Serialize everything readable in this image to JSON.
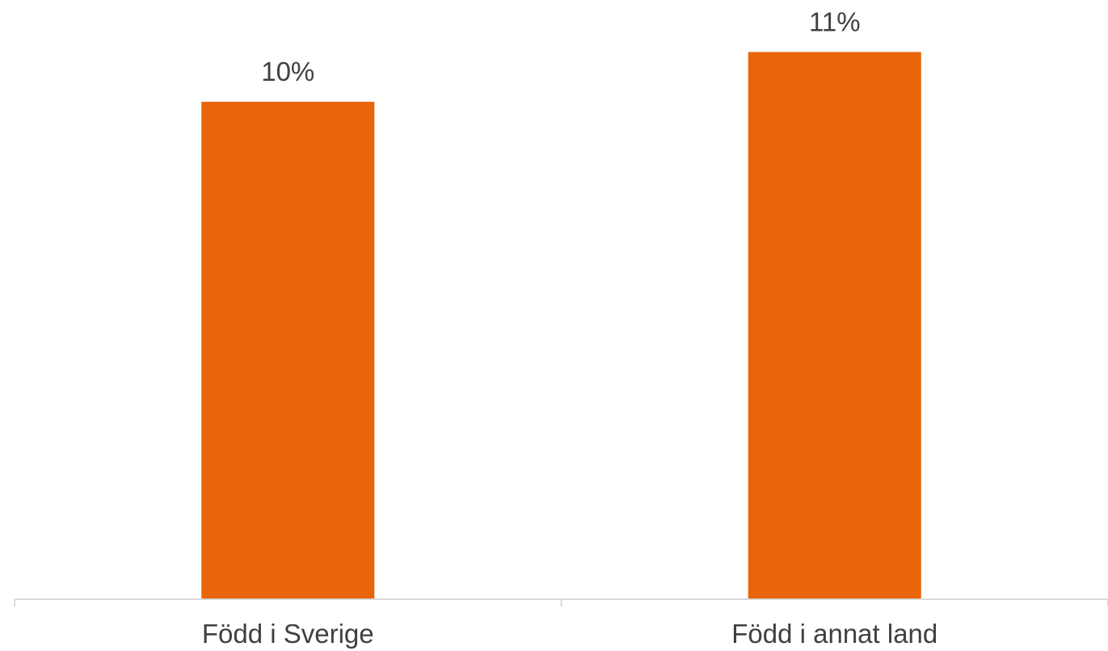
{
  "chart_data": {
    "type": "bar",
    "categories": [
      "Född i Sverige",
      "Född i annat land"
    ],
    "values": [
      10,
      11
    ],
    "data_labels": [
      "10%",
      "11%"
    ],
    "title": "",
    "xlabel": "",
    "ylabel": "",
    "ylim": [
      0,
      12
    ],
    "grid": false,
    "legend": "none",
    "colors": {
      "bar": "#E8650A",
      "axis": "#D9D9D9",
      "text": "#404040"
    }
  }
}
